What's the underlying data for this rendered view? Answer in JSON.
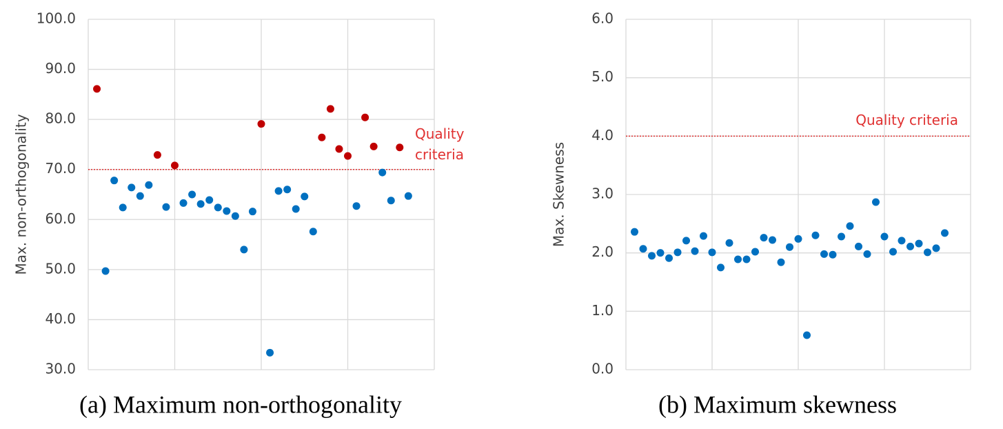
{
  "chart_data": [
    {
      "type": "scatter",
      "caption": "(a) Maximum non-orthogonality",
      "y_label": "Max. non-orthogonality",
      "xlim": [
        0,
        40
      ],
      "xticks": [
        0,
        10,
        20,
        30,
        40
      ],
      "ylim": [
        30,
        100
      ],
      "yticks": [
        {
          "value": 30,
          "label": "30.0"
        },
        {
          "value": 40,
          "label": "40.0"
        },
        {
          "value": 50,
          "label": "50.0"
        },
        {
          "value": 60,
          "label": "60.0"
        },
        {
          "value": 70,
          "label": "70.0"
        },
        {
          "value": 80,
          "label": "80.0"
        },
        {
          "value": 90,
          "label": "90.0"
        },
        {
          "value": 100,
          "label": "100.0"
        }
      ],
      "grid": true,
      "threshold": 70,
      "threshold_color": "#e03030",
      "annotation": [
        "Quality",
        "criteria"
      ],
      "series": [
        {
          "color": "#0070c0",
          "x": [
            2,
            3,
            4,
            5,
            6,
            7,
            9,
            11,
            12,
            13,
            14,
            15,
            16,
            17,
            18,
            19,
            21,
            22,
            23,
            24,
            25,
            26,
            31,
            34,
            35,
            37
          ],
          "values": [
            49.7,
            67.8,
            62.4,
            66.4,
            64.7,
            66.9,
            62.5,
            63.3,
            65.0,
            63.1,
            63.9,
            62.4,
            61.7,
            60.7,
            54.0,
            61.6,
            33.4,
            65.7,
            66.0,
            62.1,
            64.6,
            57.6,
            62.7,
            69.4,
            63.8,
            64.7
          ]
        },
        {
          "color": "#c00000",
          "x": [
            1,
            8,
            10,
            20,
            27,
            28,
            29,
            30,
            32,
            33,
            36
          ],
          "values": [
            86.1,
            72.9,
            70.8,
            79.1,
            76.4,
            82.1,
            74.1,
            72.7,
            80.4,
            74.6,
            74.4
          ]
        }
      ]
    },
    {
      "type": "scatter",
      "caption": "(b) Maximum skewness",
      "y_label": "Max. Skewness",
      "xlim": [
        0,
        40
      ],
      "xticks": [
        0,
        10,
        20,
        30,
        40
      ],
      "ylim": [
        0,
        6
      ],
      "yticks": [
        {
          "value": 0,
          "label": "0.0"
        },
        {
          "value": 1,
          "label": "1.0"
        },
        {
          "value": 2,
          "label": "2.0"
        },
        {
          "value": 3,
          "label": "3.0"
        },
        {
          "value": 4,
          "label": "4.0"
        },
        {
          "value": 5,
          "label": "5.0"
        },
        {
          "value": 6,
          "label": "6.0"
        }
      ],
      "grid": true,
      "threshold": 4,
      "threshold_color": "#e03030",
      "annotation": [
        "Quality criteria"
      ],
      "series": [
        {
          "color": "#0070c0",
          "x": [
            1,
            2,
            3,
            4,
            5,
            6,
            7,
            8,
            9,
            10,
            11,
            12,
            13,
            14,
            15,
            16,
            17,
            18,
            19,
            20,
            21,
            22,
            23,
            24,
            25,
            26,
            27,
            28,
            29,
            30,
            31,
            32,
            33,
            34,
            35,
            36,
            37
          ],
          "values": [
            2.36,
            2.07,
            1.95,
            2.0,
            1.91,
            2.01,
            2.21,
            2.03,
            2.29,
            2.01,
            1.75,
            2.17,
            1.89,
            1.89,
            2.02,
            2.26,
            2.22,
            1.84,
            2.1,
            2.24,
            0.59,
            2.3,
            1.98,
            1.97,
            2.28,
            2.46,
            2.11,
            1.98,
            2.87,
            2.28,
            2.02,
            2.21,
            2.11,
            2.16,
            2.01,
            2.08,
            2.34
          ]
        }
      ]
    }
  ]
}
